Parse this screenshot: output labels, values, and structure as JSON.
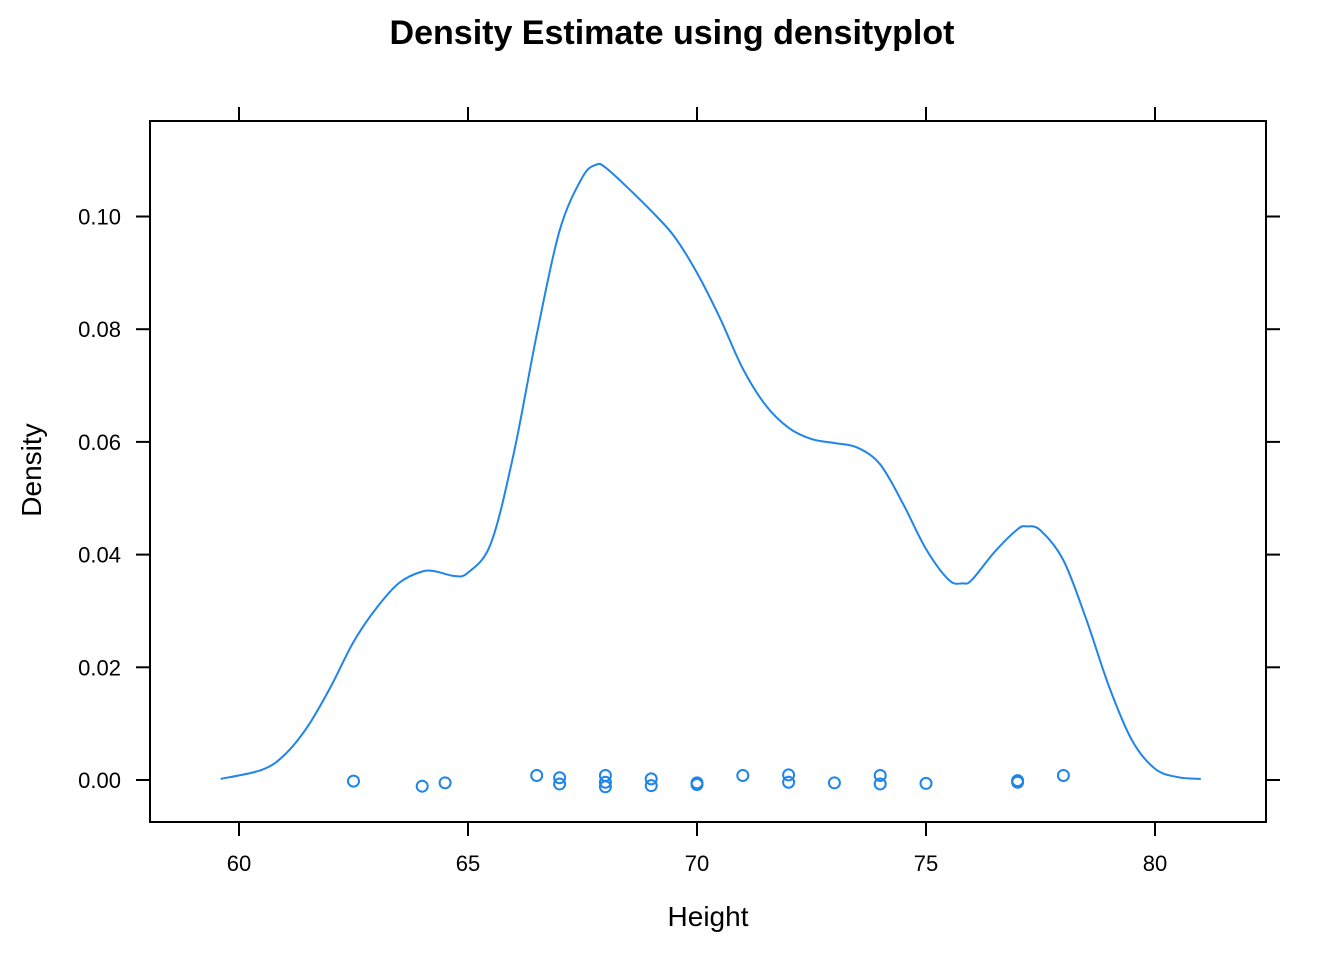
{
  "chart_data": {
    "type": "line",
    "title": "Density Estimate using densityplot",
    "xlabel": "Height",
    "ylabel": "Density",
    "xlim": [
      58.0,
      82.4
    ],
    "ylim": [
      -0.0075,
      0.1175
    ],
    "x_ticks": [
      60,
      65,
      70,
      75,
      80
    ],
    "y_ticks": [
      0.0,
      0.02,
      0.04,
      0.06,
      0.08,
      0.1
    ],
    "x_tick_labels": [
      "60",
      "65",
      "70",
      "75",
      "80"
    ],
    "y_tick_labels": [
      "0.00",
      "0.02",
      "0.04",
      "0.06",
      "0.08",
      "0.10"
    ],
    "grid": false,
    "legend": "none",
    "color": "#1f85e8",
    "density_curve": {
      "x": [
        59.6,
        60.5,
        61.0,
        61.5,
        62.0,
        62.5,
        63.0,
        63.5,
        64.0,
        64.3,
        64.7,
        65.0,
        65.5,
        66.0,
        66.5,
        67.0,
        67.5,
        67.8,
        68.0,
        68.5,
        69.0,
        69.5,
        70.0,
        70.5,
        71.0,
        71.5,
        72.0,
        72.5,
        73.0,
        73.5,
        74.0,
        74.5,
        75.0,
        75.5,
        75.8,
        76.0,
        76.5,
        77.0,
        77.2,
        77.5,
        78.0,
        78.5,
        79.0,
        79.5,
        80.0,
        80.5,
        81.0
      ],
      "y": [
        0.0002,
        0.0018,
        0.0045,
        0.0095,
        0.0165,
        0.0245,
        0.0305,
        0.035,
        0.037,
        0.037,
        0.0362,
        0.0368,
        0.042,
        0.058,
        0.079,
        0.0975,
        0.107,
        0.1092,
        0.1087,
        0.105,
        0.101,
        0.0965,
        0.09,
        0.082,
        0.073,
        0.0665,
        0.0625,
        0.0605,
        0.0598,
        0.059,
        0.056,
        0.049,
        0.041,
        0.0355,
        0.0349,
        0.0355,
        0.0405,
        0.0445,
        0.045,
        0.0443,
        0.039,
        0.0285,
        0.0165,
        0.007,
        0.002,
        0.0005,
        0.0002
      ]
    },
    "rug_points": {
      "x": [
        62.5,
        64.0,
        64.5,
        66.5,
        67.0,
        67.0,
        68.0,
        68.0,
        68.0,
        69.0,
        69.0,
        70.0,
        70.0,
        71.0,
        72.0,
        72.0,
        73.0,
        74.0,
        74.0,
        75.0,
        77.0,
        77.0,
        78.0
      ],
      "y": [
        -0.0002,
        -0.0011,
        -0.0005,
        0.0008,
        0.0004,
        -0.0007,
        0.0008,
        -0.0004,
        -0.0012,
        0.0002,
        -0.001,
        -0.0005,
        -0.0008,
        0.0008,
        0.0009,
        -0.0004,
        -0.0005,
        0.0008,
        -0.0007,
        -0.0006,
        -0.0001,
        -0.0004,
        0.0008
      ]
    }
  }
}
